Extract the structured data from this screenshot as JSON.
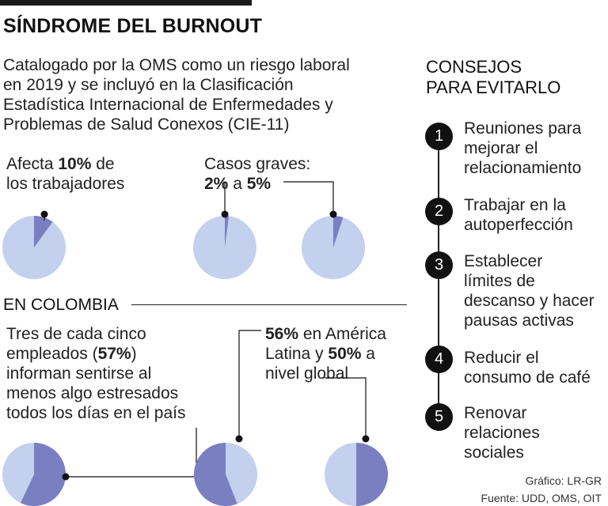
{
  "title": "SÍNDROME DEL BURNOUT",
  "intro": [
    "Catalogado por la OMS  como un riesgo laboral",
    "en 2019 y se incluyó en la Clasificación",
    "Estadística Internacional de Enfermedades y",
    "Problemas de Salud Conexos (CIE-11)"
  ],
  "stat1": {
    "pre": "Afecta ",
    "bold": "10%",
    "post": " de",
    "line2": "los trabajadores"
  },
  "stat2": {
    "line1": "Casos graves:",
    "bold1": "2%",
    "mid": " a ",
    "bold2": "5%"
  },
  "colombia": {
    "heading": "EN COLOMBIA",
    "left": {
      "l1": "Tres de cada cinco",
      "l2pre": "empleados (",
      "l2bold": "57%",
      "l2post": ")",
      "l3": "informan sentirse al",
      "l4": "menos algo estresados",
      "l5": "todos los días en el país"
    },
    "right": {
      "bold1": "56%",
      "post1": " en América",
      "l2pre": "Latina y ",
      "bold2": "50%",
      "l2post": " a",
      "l3": "nivel global"
    }
  },
  "tips": {
    "heading": [
      "CONSEJOS",
      "PARA EVITARLO"
    ],
    "items": [
      {
        "num": "1",
        "lines": [
          "Reuniones para",
          "mejorar el",
          "relacionamiento"
        ]
      },
      {
        "num": "2",
        "lines": [
          "Trabajar en la",
          "autoperfección"
        ]
      },
      {
        "num": "3",
        "lines": [
          "Establecer",
          "límites de",
          "descanso y hacer",
          "pausas activas"
        ]
      },
      {
        "num": "4",
        "lines": [
          "Reducir el",
          "consumo de café"
        ]
      },
      {
        "num": "5",
        "lines": [
          "Renovar",
          "relaciones",
          "sociales"
        ]
      }
    ]
  },
  "credits": {
    "grafico": "Gráfico: LR-GR",
    "fuente": "Fuente: UDD, OMS, OIT"
  },
  "colors": {
    "light": "#c3d0ee",
    "dark": "#7a7fc2",
    "ink": "#111111"
  },
  "chart_data": [
    {
      "type": "pie",
      "values": [
        10,
        90
      ]
    },
    {
      "type": "pie",
      "values": [
        2,
        98
      ]
    },
    {
      "type": "pie",
      "values": [
        5,
        95
      ]
    },
    {
      "type": "pie",
      "values": [
        57,
        43
      ]
    },
    {
      "type": "pie",
      "values": [
        56,
        44
      ]
    },
    {
      "type": "pie",
      "values": [
        50,
        50
      ]
    }
  ]
}
